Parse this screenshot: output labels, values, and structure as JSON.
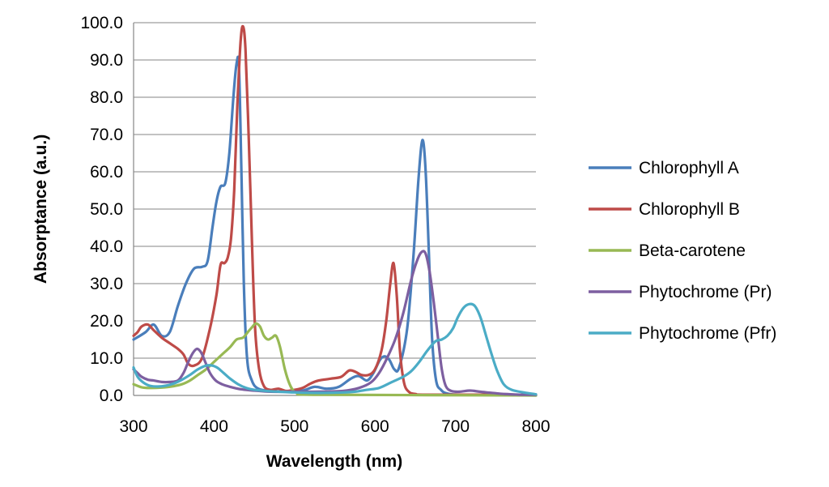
{
  "chart_data": {
    "type": "line",
    "title": "",
    "xlabel": "Wavelength (nm)",
    "ylabel": "Absorptance (a.u.)",
    "xlim": [
      300,
      800
    ],
    "ylim": [
      0,
      100
    ],
    "xticks": [
      "300",
      "400",
      "500",
      "600",
      "700",
      "800"
    ],
    "yticks": [
      "0.0",
      "10.0",
      "20.0",
      "30.0",
      "40.0",
      "50.0",
      "60.0",
      "70.0",
      "80.0",
      "90.0",
      "100.0"
    ],
    "grid": "horizontal",
    "legend_position": "right",
    "series": [
      {
        "name": "Chlorophyll A",
        "color": "#4a7ebb",
        "points": [
          [
            300,
            15
          ],
          [
            315,
            17
          ],
          [
            325,
            19
          ],
          [
            335,
            16
          ],
          [
            345,
            17
          ],
          [
            355,
            24
          ],
          [
            365,
            30
          ],
          [
            375,
            34
          ],
          [
            385,
            34.5
          ],
          [
            392,
            36
          ],
          [
            398,
            45
          ],
          [
            403,
            52
          ],
          [
            408,
            56
          ],
          [
            414,
            57
          ],
          [
            419,
            65
          ],
          [
            424,
            80
          ],
          [
            428,
            89
          ],
          [
            431,
            88
          ],
          [
            434,
            60
          ],
          [
            437,
            30
          ],
          [
            441,
            10
          ],
          [
            447,
            4
          ],
          [
            455,
            1.8
          ],
          [
            470,
            1.2
          ],
          [
            490,
            1
          ],
          [
            510,
            1.3
          ],
          [
            525,
            2.3
          ],
          [
            540,
            1.8
          ],
          [
            555,
            2.3
          ],
          [
            570,
            4.5
          ],
          [
            580,
            5.2
          ],
          [
            590,
            4
          ],
          [
            598,
            6
          ],
          [
            606,
            9.5
          ],
          [
            612,
            10.5
          ],
          [
            618,
            9.5
          ],
          [
            624,
            7
          ],
          [
            630,
            7.5
          ],
          [
            640,
            18
          ],
          [
            648,
            38
          ],
          [
            654,
            58
          ],
          [
            659,
            68.5
          ],
          [
            663,
            60
          ],
          [
            667,
            38
          ],
          [
            671,
            15
          ],
          [
            676,
            4
          ],
          [
            682,
            1.5
          ],
          [
            690,
            0.5
          ],
          [
            710,
            0.2
          ],
          [
            800,
            0
          ]
        ]
      },
      {
        "name": "Chlorophyll B",
        "color": "#be4b48",
        "points": [
          [
            300,
            16
          ],
          [
            305,
            17
          ],
          [
            310,
            18.5
          ],
          [
            318,
            19
          ],
          [
            325,
            17.5
          ],
          [
            335,
            15.5
          ],
          [
            345,
            14
          ],
          [
            355,
            12.5
          ],
          [
            362,
            11
          ],
          [
            368,
            8.5
          ],
          [
            375,
            8
          ],
          [
            385,
            10
          ],
          [
            395,
            18
          ],
          [
            403,
            27
          ],
          [
            408,
            35
          ],
          [
            413,
            35.5
          ],
          [
            417,
            37
          ],
          [
            421,
            42
          ],
          [
            425,
            55
          ],
          [
            429,
            78
          ],
          [
            433,
            95
          ],
          [
            436,
            99
          ],
          [
            439,
            93
          ],
          [
            443,
            70
          ],
          [
            447,
            42
          ],
          [
            451,
            18
          ],
          [
            456,
            7
          ],
          [
            462,
            2.5
          ],
          [
            470,
            1.5
          ],
          [
            480,
            1.8
          ],
          [
            490,
            1.2
          ],
          [
            500,
            1.5
          ],
          [
            510,
            2
          ],
          [
            520,
            3.2
          ],
          [
            530,
            4
          ],
          [
            545,
            4.5
          ],
          [
            558,
            5
          ],
          [
            568,
            6.7
          ],
          [
            576,
            6.3
          ],
          [
            583,
            5.5
          ],
          [
            592,
            5.5
          ],
          [
            600,
            7
          ],
          [
            608,
            12
          ],
          [
            614,
            20
          ],
          [
            619,
            30
          ],
          [
            623,
            35.5
          ],
          [
            627,
            27
          ],
          [
            631,
            12
          ],
          [
            636,
            3.5
          ],
          [
            642,
            1
          ],
          [
            650,
            0.4
          ],
          [
            670,
            0.2
          ],
          [
            800,
            0.2
          ]
        ]
      },
      {
        "name": "Beta-carotene",
        "color": "#98b954",
        "points": [
          [
            300,
            3
          ],
          [
            310,
            2.2
          ],
          [
            320,
            2
          ],
          [
            335,
            2.1
          ],
          [
            350,
            2.5
          ],
          [
            360,
            3
          ],
          [
            370,
            4
          ],
          [
            380,
            5.5
          ],
          [
            390,
            7
          ],
          [
            400,
            9
          ],
          [
            410,
            11
          ],
          [
            420,
            13
          ],
          [
            428,
            15
          ],
          [
            436,
            15.5
          ],
          [
            442,
            17
          ],
          [
            448,
            18.5
          ],
          [
            452,
            19.3
          ],
          [
            457,
            18.5
          ],
          [
            462,
            16
          ],
          [
            467,
            15
          ],
          [
            472,
            15.5
          ],
          [
            477,
            16
          ],
          [
            482,
            13
          ],
          [
            488,
            7
          ],
          [
            494,
            3
          ],
          [
            500,
            1
          ],
          [
            510,
            0.5
          ],
          [
            530,
            0.2
          ],
          [
            800,
            0
          ]
        ]
      },
      {
        "name": "Phytochrome (Pr)",
        "color": "#7d5fa0",
        "points": [
          [
            300,
            7
          ],
          [
            305,
            6
          ],
          [
            310,
            5
          ],
          [
            318,
            4.2
          ],
          [
            325,
            4
          ],
          [
            335,
            3.6
          ],
          [
            345,
            3.6
          ],
          [
            355,
            4
          ],
          [
            362,
            6
          ],
          [
            368,
            9
          ],
          [
            374,
            11.5
          ],
          [
            379,
            12.5
          ],
          [
            384,
            11.5
          ],
          [
            389,
            9
          ],
          [
            395,
            6
          ],
          [
            402,
            4
          ],
          [
            410,
            3
          ],
          [
            420,
            2.3
          ],
          [
            435,
            1.6
          ],
          [
            450,
            1.3
          ],
          [
            470,
            1
          ],
          [
            500,
            1
          ],
          [
            530,
            1
          ],
          [
            560,
            1.2
          ],
          [
            580,
            2
          ],
          [
            595,
            3.5
          ],
          [
            605,
            6
          ],
          [
            615,
            10
          ],
          [
            625,
            15
          ],
          [
            635,
            22
          ],
          [
            645,
            31
          ],
          [
            652,
            36
          ],
          [
            658,
            38.5
          ],
          [
            663,
            38
          ],
          [
            668,
            33
          ],
          [
            673,
            25
          ],
          [
            678,
            16
          ],
          [
            683,
            7
          ],
          [
            688,
            2.5
          ],
          [
            695,
            1.2
          ],
          [
            705,
            1
          ],
          [
            718,
            1.3
          ],
          [
            730,
            1
          ],
          [
            745,
            0.7
          ],
          [
            760,
            0.4
          ],
          [
            780,
            0.2
          ],
          [
            800,
            0.2
          ]
        ]
      },
      {
        "name": "Phytochrome (Pfr)",
        "color": "#4bacc6",
        "points": [
          [
            300,
            7.5
          ],
          [
            305,
            5
          ],
          [
            312,
            3.5
          ],
          [
            320,
            2.6
          ],
          [
            330,
            2.4
          ],
          [
            340,
            2.6
          ],
          [
            350,
            3.2
          ],
          [
            360,
            4.2
          ],
          [
            370,
            5.5
          ],
          [
            380,
            7
          ],
          [
            390,
            8
          ],
          [
            398,
            8
          ],
          [
            405,
            7.3
          ],
          [
            412,
            6
          ],
          [
            420,
            4.5
          ],
          [
            430,
            3
          ],
          [
            440,
            2
          ],
          [
            450,
            1.5
          ],
          [
            465,
            1.2
          ],
          [
            480,
            1
          ],
          [
            500,
            0.8
          ],
          [
            520,
            0.7
          ],
          [
            540,
            0.7
          ],
          [
            560,
            0.8
          ],
          [
            575,
            1
          ],
          [
            590,
            1.5
          ],
          [
            605,
            2
          ],
          [
            620,
            3.5
          ],
          [
            635,
            5
          ],
          [
            645,
            6.5
          ],
          [
            655,
            9
          ],
          [
            665,
            12
          ],
          [
            675,
            14.5
          ],
          [
            683,
            15
          ],
          [
            690,
            16
          ],
          [
            697,
            18
          ],
          [
            703,
            21
          ],
          [
            710,
            23.5
          ],
          [
            717,
            24.5
          ],
          [
            724,
            24
          ],
          [
            731,
            21
          ],
          [
            738,
            16
          ],
          [
            745,
            11
          ],
          [
            752,
            6.5
          ],
          [
            760,
            3
          ],
          [
            770,
            1.5
          ],
          [
            785,
            0.8
          ],
          [
            800,
            0.3
          ]
        ]
      }
    ]
  }
}
